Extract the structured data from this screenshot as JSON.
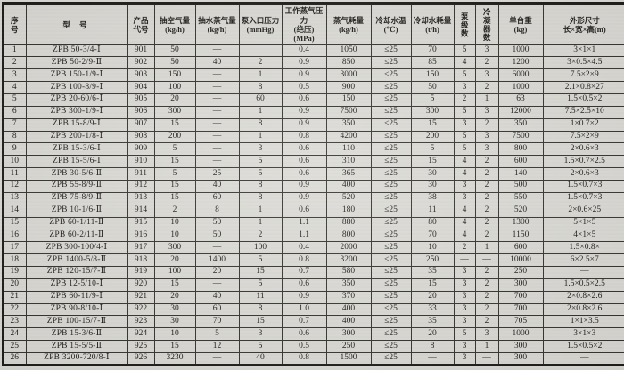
{
  "colors": {
    "paper": "#dcdbd6",
    "ink": "#1d1c1a"
  },
  "table": {
    "columns": [
      {
        "key": "seq",
        "label": "序\n号"
      },
      {
        "key": "model",
        "label": "型    号"
      },
      {
        "key": "code",
        "label": "产品\n代号"
      },
      {
        "key": "air_capacity",
        "label": "抽空气量\n(kg/h)"
      },
      {
        "key": "vapor_capacity",
        "label": "抽水蒸气量\n(kg/h)"
      },
      {
        "key": "inlet_pressure",
        "label": "泵入口压力\n(mmHg)"
      },
      {
        "key": "working_steam_pressure",
        "label": "工作蒸气压力\n(绝压)\n(MPa)"
      },
      {
        "key": "steam_consumption",
        "label": "蒸气耗量\n(kg/h)"
      },
      {
        "key": "cooling_water_temp",
        "label": "冷却水温\n(℃)"
      },
      {
        "key": "cooling_water_consumption",
        "label": "冷却水耗量\n(t/h)"
      },
      {
        "key": "pump_stages",
        "label": "泵级数"
      },
      {
        "key": "condenser_count",
        "label": "冷凝器数"
      },
      {
        "key": "unit_weight",
        "label": "单台重\n(kg)"
      },
      {
        "key": "dimensions",
        "label": "外形尺寸\n长×宽×高(m)"
      }
    ],
    "rows": [
      [
        "1",
        "ZPB 50-3/4-Ⅰ",
        "901",
        "50",
        "—",
        "",
        "0.4",
        "1050",
        "≤25",
        "70",
        "5",
        "3",
        "1000",
        "3×1×1"
      ],
      [
        "2",
        "ZPB 50-2/9-Ⅱ",
        "902",
        "50",
        "40",
        "2",
        "0.9",
        "850",
        "≤25",
        "85",
        "4",
        "2",
        "1200",
        "3×0.5×4.5"
      ],
      [
        "3",
        "ZPB 150-1/9-Ⅰ",
        "903",
        "150",
        "—",
        "1",
        "0.9",
        "3000",
        "≤25",
        "150",
        "5",
        "3",
        "6000",
        "7.5×2×9"
      ],
      [
        "4",
        "ZPB 100-8/9-Ⅰ",
        "904",
        "100",
        "—",
        "8",
        "0.5",
        "900",
        "≤25",
        "50",
        "3",
        "2",
        "1000",
        "2.1×0.8×27"
      ],
      [
        "5",
        "ZPB 20-60/6-Ⅰ",
        "905",
        "20",
        "—",
        "60",
        "0.6",
        "150",
        "≤25",
        "5",
        "2",
        "1",
        "63",
        "1.5×0.5×2"
      ],
      [
        "6",
        "ZPB 300-1/9-Ⅰ",
        "906",
        "300",
        "—",
        "1",
        "0.9",
        "7500",
        "≤25",
        "300",
        "5",
        "3",
        "12000",
        "7.5×2.5×10"
      ],
      [
        "7",
        "ZPB 15-8/9-Ⅰ",
        "907",
        "15",
        "—",
        "8",
        "0.9",
        "350",
        "≤25",
        "15",
        "3",
        "2",
        "350",
        "1×0.7×2"
      ],
      [
        "8",
        "ZPB 200-1/8-Ⅰ",
        "908",
        "200",
        "—",
        "1",
        "0.8",
        "4200",
        "≤25",
        "200",
        "5",
        "3",
        "7500",
        "7.5×2×9"
      ],
      [
        "9",
        "ZPB 15-3/6-Ⅰ",
        "909",
        "5",
        "—",
        "3",
        "0.6",
        "110",
        "≤25",
        "5",
        "5",
        "3",
        "800",
        "2×0.6×3"
      ],
      [
        "10",
        "ZPB 15-5/6-Ⅰ",
        "910",
        "15",
        "—",
        "5",
        "0.6",
        "310",
        "≤25",
        "15",
        "4",
        "2",
        "600",
        "1.5×0.7×2.5"
      ],
      [
        "11",
        "ZPB 30-5/6-Ⅱ",
        "911",
        "5",
        "25",
        "5",
        "0.6",
        "365",
        "≤25",
        "30",
        "4",
        "2",
        "140",
        "2×0.6×3"
      ],
      [
        "12",
        "ZPB 55-8/9-Ⅱ",
        "912",
        "15",
        "40",
        "8",
        "0.9",
        "400",
        "≤25",
        "30",
        "3",
        "2",
        "500",
        "1.5×0.7×3"
      ],
      [
        "13",
        "ZPB 75-8/9-Ⅱ",
        "913",
        "15",
        "60",
        "8",
        "0.9",
        "520",
        "≤25",
        "38",
        "3",
        "2",
        "550",
        "1.5×0.7×3"
      ],
      [
        "14",
        "ZPB 10-1/6-Ⅱ",
        "914",
        "2",
        "8",
        "1",
        "0.6",
        "180",
        "≤25",
        "11",
        "4",
        "2",
        "520",
        "2×0.6×25"
      ],
      [
        "15",
        "ZPB 60-1/11-Ⅱ",
        "915",
        "10",
        "50",
        "1",
        "1.1",
        "880",
        "≤25",
        "80",
        "4",
        "2",
        "1300",
        "5×1×5"
      ],
      [
        "16",
        "ZPB 60-2/11-Ⅱ",
        "916",
        "10",
        "50",
        "2",
        "1.1",
        "800",
        "≤25",
        "70",
        "4",
        "2",
        "1150",
        "4×1×5"
      ],
      [
        "17",
        "ZPB 300-100/4-Ⅰ",
        "917",
        "300",
        "—",
        "100",
        "0.4",
        "2000",
        "≤25",
        "10",
        "2",
        "1",
        "600",
        "1.5×0.8×"
      ],
      [
        "18",
        "ZPB 1400-5/8-Ⅱ",
        "918",
        "20",
        "1400",
        "5",
        "0.8",
        "3200",
        "≤25",
        "250",
        "—",
        "—",
        "10000",
        "6×2.5×7"
      ],
      [
        "19",
        "ZPB 120-15/7-Ⅱ",
        "919",
        "100",
        "20",
        "15",
        "0.7",
        "580",
        "≤25",
        "35",
        "3",
        "2",
        "250",
        "—"
      ],
      [
        "20",
        "ZPB 12-5/10-Ⅰ",
        "920",
        "15",
        "—",
        "5",
        "0.6",
        "350",
        "≤25",
        "15",
        "3",
        "2",
        "300",
        "1.5×0.5×2.5"
      ],
      [
        "21",
        "ZPB 60-11/9-Ⅰ",
        "921",
        "20",
        "40",
        "11",
        "0.9",
        "370",
        "≤25",
        "20",
        "3",
        "2",
        "700",
        "2×0.8×2.6"
      ],
      [
        "22",
        "ZPB 90-8/10-Ⅰ",
        "922",
        "30",
        "60",
        "8",
        "1.0",
        "400",
        "≤25",
        "33",
        "3",
        "2",
        "700",
        "2×0.8×2.6"
      ],
      [
        "23",
        "ZPB 100-15/7-Ⅱ",
        "923",
        "30",
        "70",
        "15",
        "0.7",
        "400",
        "≤25",
        "35",
        "3",
        "2",
        "705",
        "1×1×3.5"
      ],
      [
        "24",
        "ZPB 15-3/6-Ⅱ",
        "924",
        "10",
        "5",
        "3",
        "0.6",
        "300",
        "≤25",
        "20",
        "5",
        "3",
        "1000",
        "3×1×3"
      ],
      [
        "25",
        "ZPB 15-5/5-Ⅱ",
        "925",
        "15",
        "12",
        "5",
        "0.5",
        "250",
        "≤25",
        "8",
        "3",
        "1",
        "300",
        "1.5×0.5×2"
      ],
      [
        "26",
        "ZPB 3200-720/8-Ⅰ",
        "926",
        "3230",
        "—",
        "40",
        "0.8",
        "1500",
        "≤25",
        "—",
        "3",
        "—",
        "300",
        "—"
      ]
    ]
  }
}
